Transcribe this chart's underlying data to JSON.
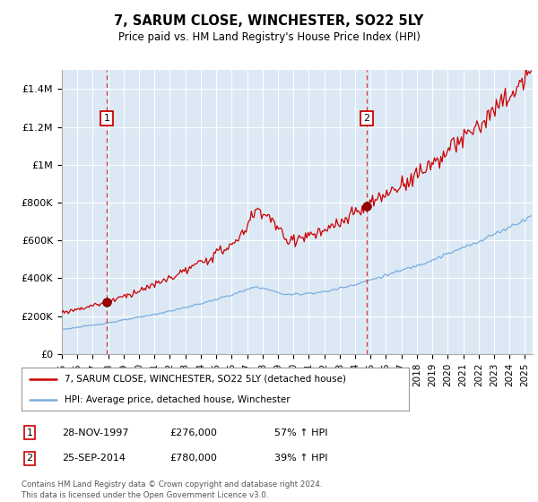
{
  "title": "7, SARUM CLOSE, WINCHESTER, SO22 5LY",
  "subtitle": "Price paid vs. HM Land Registry's House Price Index (HPI)",
  "footer": "Contains HM Land Registry data © Crown copyright and database right 2024.\nThis data is licensed under the Open Government Licence v3.0.",
  "legend_line1": "7, SARUM CLOSE, WINCHESTER, SO22 5LY (detached house)",
  "legend_line2": "HPI: Average price, detached house, Winchester",
  "annotation1_label": "1",
  "annotation1_date": "28-NOV-1997",
  "annotation1_price": "£276,000",
  "annotation1_hpi": "57% ↑ HPI",
  "annotation2_label": "2",
  "annotation2_date": "25-SEP-2014",
  "annotation2_price": "£780,000",
  "annotation2_hpi": "39% ↑ HPI",
  "red_line_color": "#cc0000",
  "blue_line_color": "#7aacdc",
  "background_color": "#dce9f5",
  "ylim": [
    0,
    1500000
  ],
  "yticks": [
    0,
    200000,
    400000,
    600000,
    800000,
    1000000,
    1200000,
    1400000
  ],
  "ytick_labels": [
    "£0",
    "£200K",
    "£400K",
    "£600K",
    "£800K",
    "£1M",
    "£1.2M",
    "£1.4M"
  ],
  "vline1_x": 1997.9,
  "vline2_x": 2014.75,
  "marker1_x": 1997.9,
  "marker1_y": 276000,
  "marker2_x": 2014.75,
  "marker2_y": 780000,
  "xlim_start": 1995.0,
  "xlim_end": 2025.5
}
